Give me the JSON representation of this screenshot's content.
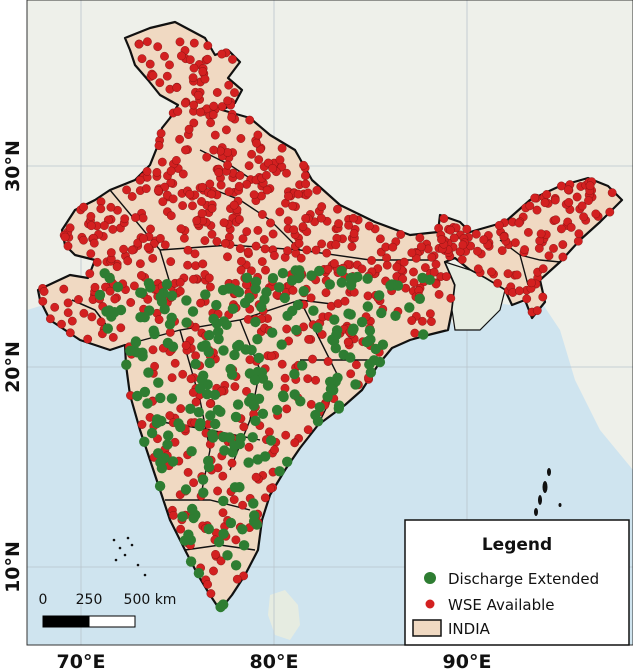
{
  "axes": {
    "x_ticks": [
      "70°E",
      "80°E",
      "90°E"
    ],
    "y_ticks": [
      "30°N",
      "20°N",
      "10°N"
    ]
  },
  "legend": {
    "title": "Legend",
    "items": [
      {
        "label": "Discharge Extended",
        "color": "#2e7d32"
      },
      {
        "label": "WSE Available",
        "color": "#d32020"
      },
      {
        "label": "INDIA",
        "color": "#f0d9c2"
      }
    ]
  },
  "scale_bar": {
    "labels": [
      "0",
      "250",
      "500 km"
    ]
  },
  "colors": {
    "land": "#f0d9c2",
    "sea": "#cfe4ef",
    "background_land": "#eef0ea",
    "discharge": "#2e7d32",
    "wse": "#d32020"
  }
}
